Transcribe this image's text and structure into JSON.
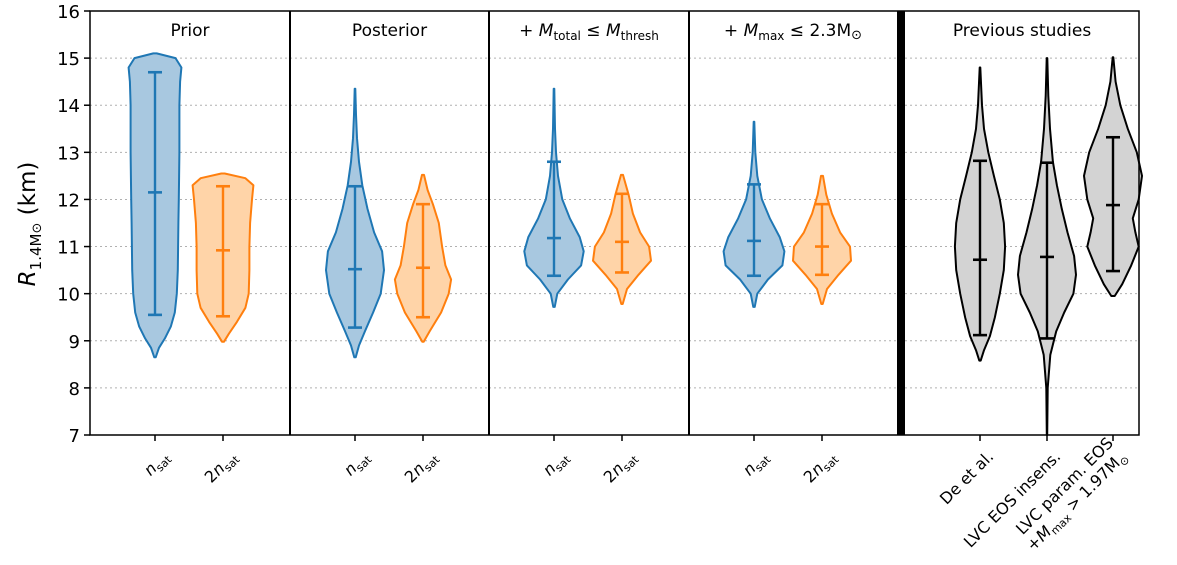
{
  "chart_data": {
    "type": "violin",
    "ylabel": "R",
    "ylabel_sub": "1.4M",
    "ylabel_sub_sym": "⊙",
    "ylabel_unit": "(km)",
    "ylim": [
      7,
      16
    ],
    "yticks": [
      7,
      8,
      9,
      10,
      11,
      12,
      13,
      14,
      15,
      16
    ],
    "grid_y": true,
    "panels": [
      {
        "title": "Prior",
        "violins": [
          {
            "label": "n_sat",
            "color": "#1f77b4",
            "fill": "#a8c8e0",
            "min": 8.65,
            "max": 15.1,
            "markers": [
              9.55,
              12.15,
              14.7
            ],
            "profile": [
              [
                8.65,
                0.02
              ],
              [
                8.85,
                0.12
              ],
              [
                9.05,
                0.3
              ],
              [
                9.3,
                0.48
              ],
              [
                9.6,
                0.6
              ],
              [
                10.0,
                0.66
              ],
              [
                10.5,
                0.69
              ],
              [
                11.0,
                0.7
              ],
              [
                11.5,
                0.71
              ],
              [
                12.0,
                0.72
              ],
              [
                12.5,
                0.73
              ],
              [
                13.0,
                0.74
              ],
              [
                13.5,
                0.74
              ],
              [
                14.0,
                0.74
              ],
              [
                14.5,
                0.76
              ],
              [
                14.8,
                0.8
              ],
              [
                15.0,
                0.62
              ],
              [
                15.1,
                0.05
              ]
            ]
          },
          {
            "label": "2n_sat",
            "color": "#ff7f0e",
            "fill": "#ffd4a8",
            "min": 8.98,
            "max": 12.55,
            "markers": [
              9.52,
              10.92,
              12.28
            ],
            "profile": [
              [
                8.98,
                0.03
              ],
              [
                9.15,
                0.18
              ],
              [
                9.4,
                0.42
              ],
              [
                9.7,
                0.68
              ],
              [
                10.0,
                0.78
              ],
              [
                10.5,
                0.8
              ],
              [
                11.0,
                0.8
              ],
              [
                11.5,
                0.82
              ],
              [
                12.0,
                0.88
              ],
              [
                12.3,
                0.92
              ],
              [
                12.45,
                0.68
              ],
              [
                12.55,
                0.05
              ]
            ]
          }
        ]
      },
      {
        "title": "Posterior",
        "violins": [
          {
            "label": "n_sat",
            "color": "#1f77b4",
            "fill": "#a8c8e0",
            "min": 8.65,
            "max": 14.35,
            "markers": [
              9.28,
              10.52,
              12.28
            ],
            "profile": [
              [
                8.65,
                0.02
              ],
              [
                8.9,
                0.12
              ],
              [
                9.2,
                0.3
              ],
              [
                9.6,
                0.55
              ],
              [
                10.0,
                0.78
              ],
              [
                10.5,
                0.88
              ],
              [
                10.9,
                0.82
              ],
              [
                11.3,
                0.58
              ],
              [
                11.8,
                0.38
              ],
              [
                12.3,
                0.22
              ],
              [
                12.8,
                0.12
              ],
              [
                13.3,
                0.06
              ],
              [
                13.8,
                0.03
              ],
              [
                14.35,
                0.01
              ]
            ]
          },
          {
            "label": "2n_sat",
            "color": "#ff7f0e",
            "fill": "#ffd4a8",
            "min": 8.98,
            "max": 12.52,
            "markers": [
              9.5,
              10.55,
              11.9
            ],
            "profile": [
              [
                8.98,
                0.02
              ],
              [
                9.2,
                0.2
              ],
              [
                9.6,
                0.55
              ],
              [
                10.0,
                0.78
              ],
              [
                10.3,
                0.85
              ],
              [
                10.6,
                0.68
              ],
              [
                11.0,
                0.58
              ],
              [
                11.5,
                0.48
              ],
              [
                11.9,
                0.3
              ],
              [
                12.2,
                0.14
              ],
              [
                12.52,
                0.03
              ]
            ]
          }
        ]
      },
      {
        "title": "+ M_total ≤ M_thresh",
        "violins": [
          {
            "label": "n_sat",
            "color": "#1f77b4",
            "fill": "#a8c8e0",
            "min": 9.72,
            "max": 14.35,
            "markers": [
              10.38,
              11.18,
              12.8
            ],
            "profile": [
              [
                9.72,
                0.02
              ],
              [
                10.0,
                0.1
              ],
              [
                10.3,
                0.42
              ],
              [
                10.6,
                0.82
              ],
              [
                10.9,
                0.9
              ],
              [
                11.2,
                0.78
              ],
              [
                11.6,
                0.48
              ],
              [
                12.0,
                0.25
              ],
              [
                12.5,
                0.12
              ],
              [
                13.0,
                0.06
              ],
              [
                13.5,
                0.03
              ],
              [
                14.35,
                0.01
              ]
            ]
          },
          {
            "label": "2n_sat",
            "color": "#ff7f0e",
            "fill": "#ffd4a8",
            "min": 9.78,
            "max": 12.52,
            "markers": [
              10.45,
              11.1,
              12.12
            ],
            "profile": [
              [
                9.78,
                0.02
              ],
              [
                10.1,
                0.15
              ],
              [
                10.4,
                0.5
              ],
              [
                10.7,
                0.88
              ],
              [
                11.0,
                0.82
              ],
              [
                11.3,
                0.55
              ],
              [
                11.7,
                0.33
              ],
              [
                12.1,
                0.2
              ],
              [
                12.52,
                0.03
              ]
            ]
          }
        ]
      },
      {
        "title": "+ M_max ≤ 2.3M_⊙",
        "violins": [
          {
            "label": "n_sat",
            "color": "#1f77b4",
            "fill": "#a8c8e0",
            "min": 9.72,
            "max": 13.65,
            "markers": [
              10.38,
              11.12,
              12.32
            ],
            "profile": [
              [
                9.72,
                0.02
              ],
              [
                10.0,
                0.1
              ],
              [
                10.3,
                0.42
              ],
              [
                10.6,
                0.86
              ],
              [
                10.9,
                0.92
              ],
              [
                11.2,
                0.78
              ],
              [
                11.6,
                0.48
              ],
              [
                12.0,
                0.24
              ],
              [
                12.5,
                0.1
              ],
              [
                13.0,
                0.04
              ],
              [
                13.65,
                0.01
              ]
            ]
          },
          {
            "label": "2n_sat",
            "color": "#ff7f0e",
            "fill": "#ffd4a8",
            "min": 9.78,
            "max": 12.5,
            "markers": [
              10.4,
              11.0,
              11.9
            ],
            "profile": [
              [
                9.78,
                0.02
              ],
              [
                10.1,
                0.15
              ],
              [
                10.4,
                0.5
              ],
              [
                10.7,
                0.88
              ],
              [
                11.0,
                0.85
              ],
              [
                11.3,
                0.55
              ],
              [
                11.7,
                0.3
              ],
              [
                12.1,
                0.13
              ],
              [
                12.5,
                0.03
              ]
            ]
          }
        ]
      },
      {
        "title": "Previous studies",
        "violins": [
          {
            "label": "De et al.",
            "color": "#000000",
            "fill": "#d3d3d3",
            "min": 8.58,
            "max": 14.8,
            "markers": [
              9.12,
              10.72,
              12.82
            ],
            "profile": [
              [
                8.58,
                0.02
              ],
              [
                8.8,
                0.12
              ],
              [
                9.1,
                0.3
              ],
              [
                9.5,
                0.45
              ],
              [
                10.0,
                0.6
              ],
              [
                10.5,
                0.72
              ],
              [
                11.0,
                0.76
              ],
              [
                11.5,
                0.72
              ],
              [
                12.0,
                0.6
              ],
              [
                12.5,
                0.42
              ],
              [
                13.0,
                0.25
              ],
              [
                13.5,
                0.12
              ],
              [
                14.0,
                0.06
              ],
              [
                14.8,
                0.01
              ]
            ]
          },
          {
            "label": "LVC EOS insens.",
            "color": "#000000",
            "fill": "#d3d3d3",
            "min": 7.0,
            "max": 15.0,
            "markers": [
              9.05,
              10.78,
              12.78
            ],
            "profile": [
              [
                7.0,
                0.005
              ],
              [
                8.0,
                0.02
              ],
              [
                8.7,
                0.1
              ],
              [
                9.2,
                0.28
              ],
              [
                9.6,
                0.52
              ],
              [
                10.0,
                0.8
              ],
              [
                10.4,
                0.88
              ],
              [
                10.8,
                0.82
              ],
              [
                11.3,
                0.62
              ],
              [
                11.8,
                0.45
              ],
              [
                12.3,
                0.3
              ],
              [
                12.8,
                0.18
              ],
              [
                13.5,
                0.09
              ],
              [
                14.2,
                0.04
              ],
              [
                15.0,
                0.01
              ]
            ]
          },
          {
            "label": "LVC param. EOS",
            "label2": "+M_max > 1.97M_⊙",
            "color": "#000000",
            "fill": "#d3d3d3",
            "min": 9.95,
            "max": 15.02,
            "markers": [
              10.48,
              11.88,
              13.32
            ],
            "profile": [
              [
                9.95,
                0.05
              ],
              [
                10.2,
                0.28
              ],
              [
                10.6,
                0.55
              ],
              [
                11.0,
                0.78
              ],
              [
                11.3,
                0.68
              ],
              [
                11.6,
                0.6
              ],
              [
                12.0,
                0.78
              ],
              [
                12.5,
                0.88
              ],
              [
                13.0,
                0.72
              ],
              [
                13.5,
                0.45
              ],
              [
                14.0,
                0.22
              ],
              [
                14.5,
                0.08
              ],
              [
                15.02,
                0.01
              ]
            ]
          }
        ]
      }
    ]
  }
}
